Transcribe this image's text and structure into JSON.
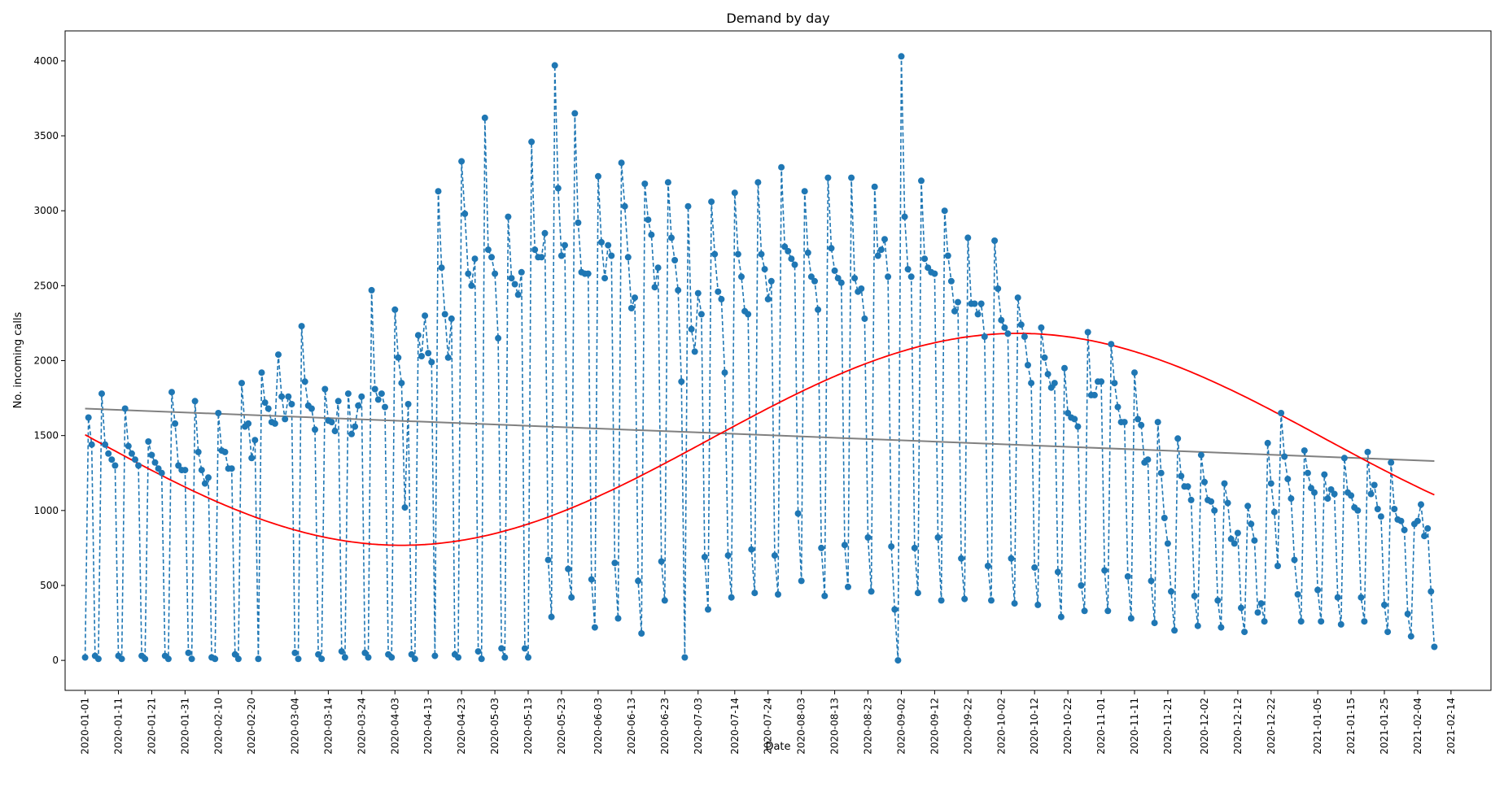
{
  "chart_data": {
    "type": "line",
    "title": "Demand by day",
    "xlabel": "Date",
    "ylabel": "No. incoming calls",
    "x_start": "2020-01-01",
    "x_end": "2021-02-21",
    "xlim": [
      "2019-12-26",
      "2021-02-26"
    ],
    "ylim": [
      -200,
      4200
    ],
    "x_ticks": [
      "2020-01-01",
      "2020-01-11",
      "2020-01-21",
      "2020-01-31",
      "2020-02-10",
      "2020-02-20",
      "2020-03-04",
      "2020-03-14",
      "2020-03-24",
      "2020-04-03",
      "2020-04-13",
      "2020-04-23",
      "2020-05-03",
      "2020-05-13",
      "2020-05-23",
      "2020-06-03",
      "2020-06-13",
      "2020-06-23",
      "2020-07-03",
      "2020-07-14",
      "2020-07-24",
      "2020-08-03",
      "2020-08-13",
      "2020-08-23",
      "2020-09-02",
      "2020-09-12",
      "2020-09-22",
      "2020-10-02",
      "2020-10-12",
      "2020-10-22",
      "2020-11-01",
      "2020-11-11",
      "2020-11-21",
      "2020-12-02",
      "2020-12-12",
      "2020-12-22",
      "2021-01-05",
      "2021-01-15",
      "2021-01-25",
      "2021-02-04",
      "2021-02-14"
    ],
    "y_ticks": [
      0,
      500,
      1000,
      1500,
      2000,
      2500,
      3000,
      3500,
      4000
    ],
    "grid": false,
    "series": [
      {
        "role": "daily",
        "style": "dashed-markers",
        "color": "#1f77b4",
        "values": [
          20,
          1620,
          1440,
          30,
          10,
          1780,
          1440,
          1380,
          1340,
          1300,
          30,
          10,
          1680,
          1430,
          1380,
          1340,
          1300,
          30,
          10,
          1460,
          1370,
          1320,
          1280,
          1250,
          30,
          10,
          1790,
          1580,
          1300,
          1270,
          1270,
          50,
          10,
          1730,
          1390,
          1270,
          1180,
          1220,
          20,
          10,
          1650,
          1400,
          1390,
          1280,
          1280,
          40,
          10,
          1850,
          1560,
          1580,
          1350,
          1470,
          10,
          1920,
          1720,
          1680,
          1590,
          1580,
          2040,
          1760,
          1610,
          1760,
          1710,
          50,
          10,
          2230,
          1860,
          1700,
          1680,
          1540,
          40,
          10,
          1810,
          1600,
          1590,
          1530,
          1730,
          60,
          20,
          1780,
          1510,
          1560,
          1700,
          1760,
          50,
          20,
          2470,
          1810,
          1740,
          1780,
          1690,
          40,
          20,
          2340,
          2020,
          1850,
          1020,
          1710,
          40,
          10,
          2170,
          2030,
          2300,
          2050,
          1990,
          30,
          3130,
          2620,
          2310,
          2020,
          2280,
          40,
          20,
          3330,
          2980,
          2580,
          2500,
          2680,
          60,
          10,
          3620,
          2740,
          2690,
          2580,
          2150,
          80,
          20,
          2960,
          2550,
          2510,
          2440,
          2590,
          80,
          20,
          3460,
          2740,
          2690,
          2690,
          2850,
          670,
          290,
          3970,
          3150,
          2700,
          2770,
          610,
          420,
          3650,
          2920,
          2590,
          2580,
          2580,
          540,
          220,
          3230,
          2790,
          2550,
          2770,
          2700,
          650,
          280,
          3320,
          3030,
          2690,
          2350,
          2420,
          530,
          180,
          3180,
          2940,
          2840,
          2490,
          2620,
          660,
          400,
          3190,
          2820,
          2670,
          2470,
          1860,
          20,
          3030,
          2210,
          2060,
          2450,
          2310,
          690,
          340,
          3060,
          2710,
          2460,
          2410,
          1920,
          700,
          420,
          3120,
          2710,
          2560,
          2330,
          2310,
          740,
          450,
          3190,
          2710,
          2610,
          2410,
          2530,
          700,
          440,
          3290,
          2760,
          2730,
          2680,
          2640,
          980,
          530,
          3130,
          2720,
          2560,
          2530,
          2340,
          750,
          430,
          3220,
          2750,
          2600,
          2550,
          2520,
          770,
          490,
          3220,
          2550,
          2460,
          2480,
          2280,
          820,
          460,
          3160,
          2700,
          2740,
          2810,
          2560,
          760,
          340,
          0,
          4030,
          2960,
          2610,
          2560,
          750,
          450,
          3200,
          2680,
          2620,
          2590,
          2580,
          820,
          400,
          3000,
          2700,
          2530,
          2330,
          2390,
          680,
          410,
          2820,
          2380,
          2380,
          2310,
          2380,
          2160,
          630,
          400,
          2800,
          2480,
          2270,
          2220,
          2180,
          680,
          380,
          2420,
          2240,
          2160,
          1970,
          1850,
          620,
          370,
          2220,
          2020,
          1910,
          1820,
          1850,
          590,
          290,
          1950,
          1650,
          1620,
          1610,
          1560,
          500,
          330,
          2190,
          1770,
          1770,
          1860,
          1860,
          600,
          330,
          2110,
          1850,
          1690,
          1590,
          1590,
          560,
          280,
          1920,
          1610,
          1570,
          1320,
          1340,
          530,
          250,
          1590,
          1250,
          950,
          780,
          460,
          200,
          1480,
          1230,
          1160,
          1160,
          1070,
          430,
          230,
          1370,
          1190,
          1070,
          1060,
          1000,
          400,
          220,
          1180,
          1050,
          810,
          780,
          850,
          350,
          190,
          1030,
          910,
          800,
          320,
          380,
          260,
          1450,
          1180,
          990,
          630,
          1650,
          1360,
          1210,
          1080,
          670,
          440,
          260,
          1400,
          1250,
          1150,
          1120,
          470,
          260,
          1240,
          1080,
          1140,
          1110,
          420,
          240,
          1350,
          1120,
          1100,
          1020,
          1000,
          420,
          260,
          1390,
          1110,
          1170,
          1010,
          960,
          370,
          190,
          1320,
          1010,
          940,
          930,
          870,
          310,
          160,
          910,
          930,
          1040,
          830,
          880,
          460,
          90
        ]
      },
      {
        "role": "linear-trend",
        "style": "solid",
        "color": "#808080",
        "start": 1680,
        "end": 1330
      },
      {
        "role": "seasonal-fit",
        "style": "solid",
        "color": "#ff0000",
        "mean": 1475,
        "amplitude": 707,
        "period_days": 370,
        "phase_days": 95
      }
    ]
  }
}
